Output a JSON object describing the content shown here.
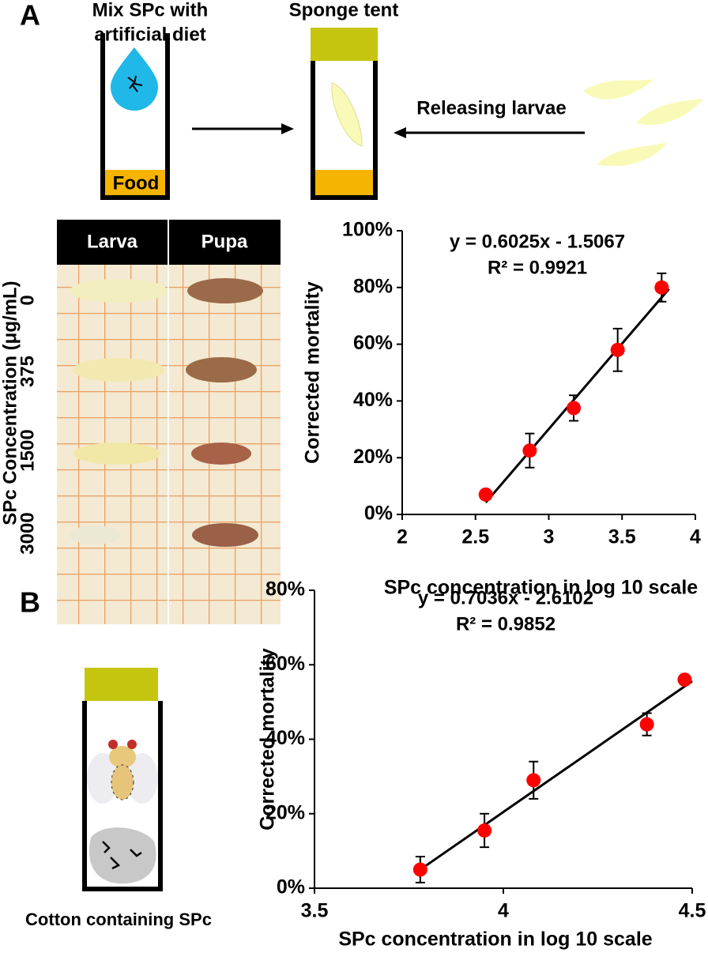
{
  "panel_a": {
    "label": "A",
    "step1": [
      "Mix SPc with",
      "artificial diet"
    ],
    "food": "Food",
    "step2": "Sponge tent",
    "step3": "Releasing larvae",
    "photo": {
      "columns": [
        "Larva",
        "Pupa"
      ],
      "rows": [
        "0",
        "375",
        "1500",
        "3000"
      ],
      "axis_label": "SPc Concentration (μg/mL)"
    }
  },
  "panel_b": {
    "label": "B",
    "caption": "Cotton containing SPc"
  },
  "chart_data": [
    {
      "type": "scatter",
      "annotation": [
        "y = 0.6025x - 1.5067",
        "R² = 0.9921"
      ],
      "xlabel": "SPc  concentration in log 10 scale",
      "ylabel": "Corrected mortality",
      "color": "#ff0000",
      "x": [
        2.57,
        2.87,
        3.17,
        3.47,
        3.77
      ],
      "values": [
        7,
        22.5,
        37.5,
        58,
        80
      ],
      "errors": [
        1,
        6,
        4.5,
        7.5,
        5
      ],
      "trendline": {
        "x": [
          2.57,
          3.82
        ],
        "values": [
          4.2,
          79.5
        ],
        "color": "#000000"
      },
      "xlim": [
        2,
        4
      ],
      "xticks": [
        2,
        2.5,
        3,
        3.5,
        4
      ],
      "ylim": [
        0,
        100
      ],
      "yticks": [
        {
          "value": 0,
          "label": "0%"
        },
        {
          "value": 20,
          "label": "20%"
        },
        {
          "value": 40,
          "label": "40%"
        },
        {
          "value": 60,
          "label": "60%"
        },
        {
          "value": 80,
          "label": "80%"
        },
        {
          "value": 100,
          "label": "100%"
        }
      ]
    },
    {
      "type": "scatter",
      "annotation": [
        "y = 0.7036x - 2.6102",
        "R² = 0.9852"
      ],
      "xlabel": "SPc  concentration in log 10 scale",
      "ylabel": "Corrected mortality",
      "color": "#ff0000",
      "x": [
        3.78,
        3.95,
        4.08,
        4.38,
        4.48
      ],
      "values": [
        5,
        15.5,
        29,
        44,
        56
      ],
      "errors": [
        3.5,
        4.5,
        5,
        3,
        1
      ],
      "trendline": {
        "x": [
          3.78,
          4.5
        ],
        "values": [
          5,
          55.6
        ],
        "color": "#000000"
      },
      "xlim": [
        3.5,
        4.5
      ],
      "xticks": [
        3.5,
        4,
        4.5
      ],
      "ylim": [
        0,
        80
      ],
      "yticks": [
        {
          "value": 0,
          "label": "0%"
        },
        {
          "value": 20,
          "label": "20%"
        },
        {
          "value": 40,
          "label": "40%"
        },
        {
          "value": 60,
          "label": "60%"
        },
        {
          "value": 80,
          "label": "80%"
        }
      ]
    }
  ]
}
